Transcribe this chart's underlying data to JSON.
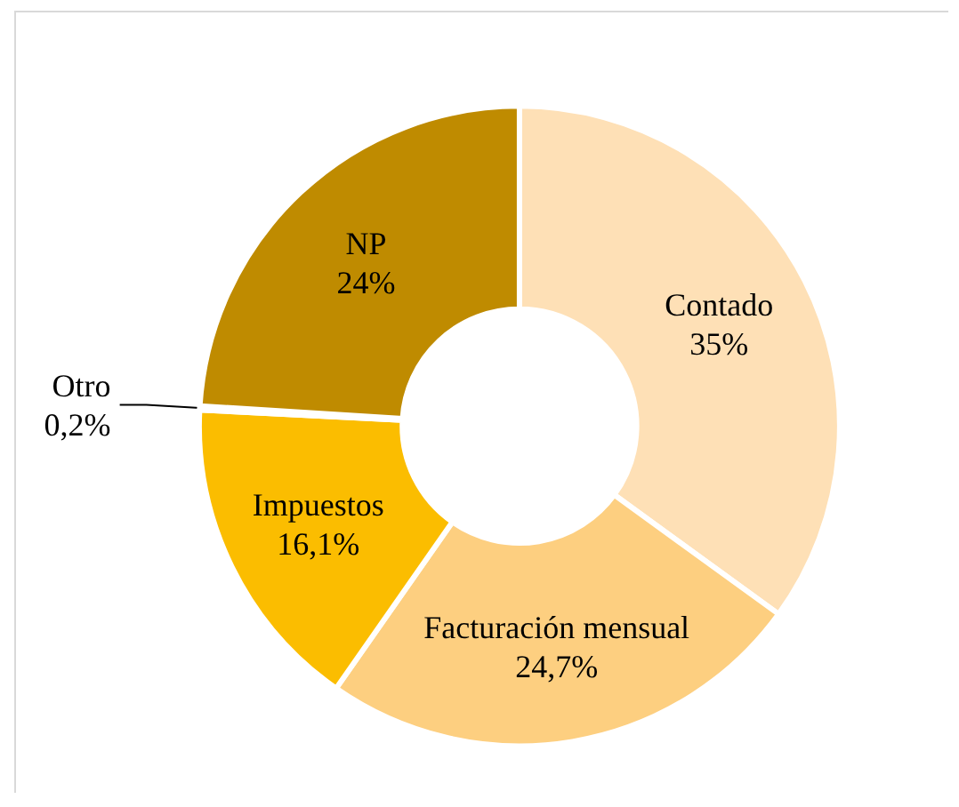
{
  "chart_data": {
    "type": "donut",
    "categories": [
      "Contado",
      "Facturación mensual",
      "Impuestos",
      "Otro",
      "NP"
    ],
    "values": [
      35,
      24.7,
      16.1,
      0.2,
      24
    ],
    "value_labels": [
      "35%",
      "24,7%",
      "16,1%",
      "0,2%",
      "24%"
    ],
    "colors": [
      "#fee0b6",
      "#fdcf80",
      "#fbbd00",
      "#fbd27a",
      "#bf8b00"
    ],
    "legend": false
  }
}
